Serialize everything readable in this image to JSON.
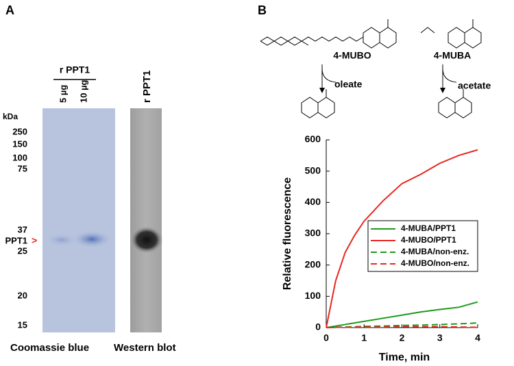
{
  "panel_a": {
    "label": "A",
    "group_label": "r PPT1",
    "lanes": [
      "5 µg",
      "10 µg"
    ],
    "blot_label": "r PPT1",
    "unit": "kDa",
    "markers": [
      "250",
      "150",
      "100",
      "75",
      "37",
      "PPT1",
      "25",
      "20",
      "15"
    ],
    "arrow": ">",
    "captions": [
      "Coomassie blue",
      "Western blot"
    ]
  },
  "panel_b": {
    "label": "B",
    "compounds": [
      "4-MUBO",
      "4-MUBA"
    ],
    "products": [
      "oleate",
      "acetate"
    ]
  },
  "chart_data": {
    "type": "line",
    "x_label": "Time, min",
    "y_label": "Relative fluorescence",
    "x": [
      0,
      0.25,
      0.5,
      0.75,
      1,
      1.5,
      2,
      2.5,
      3,
      3.5,
      4
    ],
    "series": [
      {
        "name": "4-MUBA/PPT1",
        "color": "#1a9a1a",
        "dashed": false,
        "values": [
          0,
          5,
          10,
          15,
          20,
          30,
          40,
          50,
          58,
          65,
          82
        ]
      },
      {
        "name": "4-MUBO/PPT1",
        "color": "#e8261f",
        "dashed": false,
        "values": [
          0,
          150,
          240,
          295,
          340,
          405,
          460,
          490,
          525,
          550,
          568
        ]
      },
      {
        "name": "4-MUBA/non-enz.",
        "color": "#1a9a1a",
        "dashed": true,
        "values": [
          0,
          1,
          2,
          3,
          4,
          5,
          7,
          8,
          10,
          12,
          15
        ]
      },
      {
        "name": "4-MUBO/non-enz.",
        "color": "#e8261f",
        "dashed": true,
        "values": [
          0,
          1,
          1,
          2,
          2,
          2,
          3,
          3,
          3,
          2,
          1
        ]
      }
    ],
    "xlim": [
      0,
      4
    ],
    "xticks": [
      0,
      1,
      2,
      3,
      4
    ],
    "ylim": [
      0,
      600
    ],
    "yticks": [
      0,
      100,
      200,
      300,
      400,
      500,
      600
    ],
    "grid": false
  }
}
